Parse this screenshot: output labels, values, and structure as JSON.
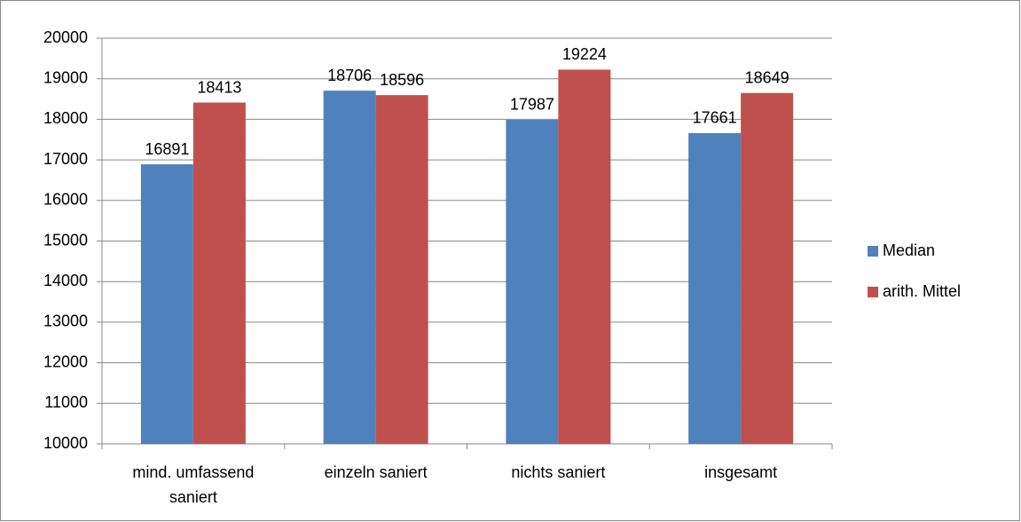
{
  "chart_data": {
    "type": "bar",
    "categories": [
      "mind. umfassend saniert",
      "einzeln saniert",
      "nichts saniert",
      "insgesamt"
    ],
    "series": [
      {
        "name": "Median",
        "color": "#4f81bd",
        "values": [
          16891,
          18706,
          17987,
          17661
        ]
      },
      {
        "name": "arith. Mittel",
        "color": "#c0504d",
        "values": [
          18413,
          18596,
          19224,
          18649
        ]
      }
    ],
    "ylim": [
      10000,
      20000
    ],
    "yticks": [
      10000,
      11000,
      12000,
      13000,
      14000,
      15000,
      16000,
      17000,
      18000,
      19000,
      20000
    ],
    "grid": true,
    "legend": "right"
  }
}
